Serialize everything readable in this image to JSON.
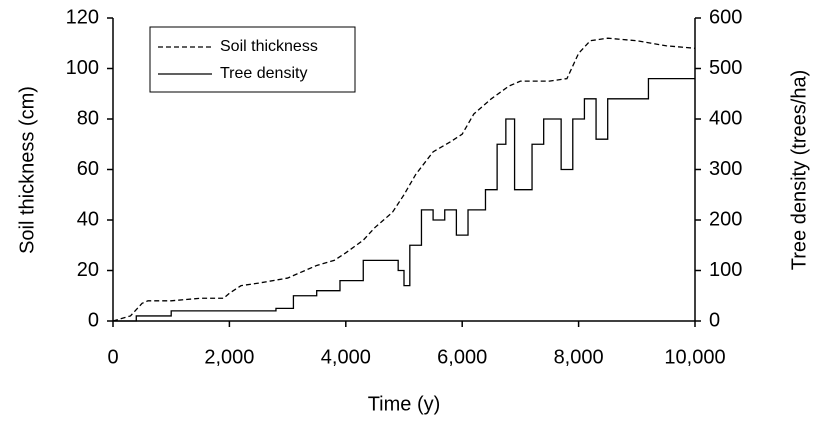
{
  "chart_data": {
    "type": "line",
    "xlabel": "Time (y)",
    "ylabel": "Soil thickness (cm)",
    "y2label": "Tree density (trees/ha)",
    "xlim": [
      0,
      10000
    ],
    "xticks": [
      0,
      {
        "value": 2000,
        "label": "2,000"
      },
      {
        "value": 4000,
        "label": "4,000"
      },
      {
        "value": 6000,
        "label": "6,000"
      },
      {
        "value": 8000,
        "label": "8,000"
      },
      {
        "value": 10000,
        "label": "10,000"
      }
    ],
    "ylim": [
      0,
      120
    ],
    "yticks": [
      0,
      20,
      40,
      60,
      80,
      100,
      120
    ],
    "y2lim": [
      0,
      600
    ],
    "y2ticks": [
      0,
      100,
      200,
      300,
      400,
      500,
      600
    ],
    "legend": "top-left",
    "series": [
      {
        "name": "Soil thickness",
        "color": "#000000",
        "line_style": "dashed",
        "axis": "y",
        "x": [
          0,
          300,
          500,
          600,
          1000,
          1500,
          1900,
          2000,
          2200,
          2500,
          3000,
          3200,
          3500,
          3800,
          4000,
          4300,
          4500,
          4800,
          5000,
          5200,
          5500,
          5800,
          6000,
          6200,
          6500,
          6800,
          7000,
          7500,
          7800,
          8000,
          8200,
          8500,
          9000,
          9500,
          10000
        ],
        "values": [
          0,
          2,
          7,
          8,
          8,
          9,
          9,
          11,
          14,
          15,
          17,
          19,
          22,
          24,
          27,
          32,
          37,
          43,
          50,
          58,
          67,
          71,
          74,
          82,
          88,
          93,
          95,
          95,
          96,
          106,
          111,
          112,
          111,
          109,
          108
        ]
      },
      {
        "name": "Tree density",
        "color": "#000000",
        "line_style": "solid",
        "axis": "y2",
        "x": [
          0,
          400,
          400,
          1000,
          1000,
          1500,
          1500,
          2800,
          2800,
          3100,
          3100,
          3500,
          3500,
          3900,
          3900,
          4300,
          4300,
          4900,
          4900,
          5000,
          5000,
          5100,
          5100,
          5300,
          5300,
          5500,
          5500,
          5700,
          5700,
          5900,
          5900,
          6100,
          6100,
          6400,
          6400,
          6600,
          6600,
          6750,
          6750,
          6900,
          6900,
          7200,
          7200,
          7400,
          7400,
          7700,
          7700,
          7900,
          7900,
          8100,
          8100,
          8300,
          8300,
          8500,
          8500,
          9200,
          9200,
          10000
        ],
        "values": [
          0,
          0,
          10,
          10,
          20,
          20,
          20,
          20,
          25,
          25,
          50,
          50,
          60,
          60,
          80,
          80,
          120,
          120,
          100,
          100,
          70,
          70,
          150,
          150,
          220,
          220,
          200,
          200,
          220,
          220,
          170,
          170,
          220,
          220,
          260,
          260,
          350,
          350,
          400,
          400,
          260,
          260,
          350,
          350,
          400,
          400,
          300,
          300,
          400,
          400,
          440,
          440,
          360,
          360,
          440,
          440,
          480,
          480
        ]
      }
    ]
  }
}
